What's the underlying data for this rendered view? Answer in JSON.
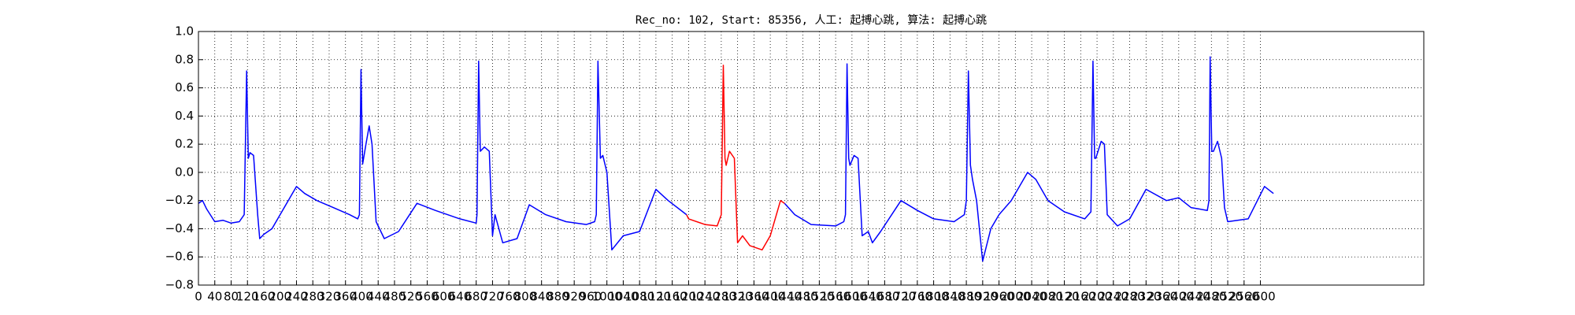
{
  "chart_data": {
    "type": "line",
    "title": "Rec_no: 102, Start: 85356, 人工: 起搏心跳, 算法: 起搏心跳",
    "xlim": [
      0,
      3000
    ],
    "xticks": [
      0,
      40,
      80,
      120,
      160,
      200,
      240,
      280,
      320,
      360,
      400,
      440,
      480,
      520,
      560,
      600,
      640,
      680,
      720,
      760,
      800,
      840,
      880,
      920,
      960,
      1000,
      1040,
      1080,
      1120,
      1160,
      1200,
      1240,
      1280,
      1320,
      1360,
      1400,
      1440,
      1480,
      1520,
      1560,
      1600,
      1640,
      1680,
      1720,
      1760,
      1800,
      1840,
      1880,
      1920,
      1960,
      2000,
      2040,
      2080,
      2120,
      2160,
      2200,
      2240,
      2280,
      2320,
      2360,
      2400,
      2440,
      2480,
      2520,
      2560,
      2600
    ],
    "ylim": [
      -0.8,
      1.0
    ],
    "yticks": [
      {
        "value": -0.8,
        "label": "−0.8"
      },
      {
        "value": -0.6,
        "label": "−0.6"
      },
      {
        "value": -0.4,
        "label": "−0.4"
      },
      {
        "value": -0.2,
        "label": "−0.2"
      },
      {
        "value": 0.0,
        "label": "0.0"
      },
      {
        "value": 0.2,
        "label": "0.2"
      },
      {
        "value": 0.4,
        "label": "0.4"
      },
      {
        "value": 0.6,
        "label": "0.6"
      },
      {
        "value": 0.8,
        "label": "0.8"
      },
      {
        "value": 1.0,
        "label": "1.0"
      }
    ],
    "grid": true,
    "series": [
      {
        "color": "#0000ff",
        "x": [
          0,
          10,
          20,
          40,
          60,
          80,
          100,
          112,
          118,
          122,
          126,
          135,
          145,
          150,
          160,
          180,
          210,
          240,
          260,
          290,
          330,
          370,
          390,
          394,
          398,
          402,
          410,
          418,
          425,
          435,
          455,
          490,
          535,
          580,
          640,
          680,
          682,
          686,
          690,
          700,
          712,
          720,
          726,
          745,
          780,
          810,
          850,
          900,
          950,
          970,
          974,
          978,
          984,
          990,
          1000,
          1012,
          1040,
          1080,
          1120,
          1150,
          1195,
          1300,
          1435,
          1460,
          1500,
          1560,
          1580,
          1584,
          1588,
          1592,
          1595,
          1605,
          1615,
          1625,
          1640,
          1650,
          1670,
          1720,
          1760,
          1800,
          1850,
          1875,
          1880,
          1885,
          1890,
          1895,
          1905,
          1920,
          1940,
          1960,
          1990,
          2030,
          2050,
          2080,
          2120,
          2170,
          2185,
          2190,
          2194,
          2197,
          2210,
          2218,
          2225,
          2250,
          2280,
          2320,
          2370,
          2400,
          2430,
          2470,
          2474,
          2477,
          2481,
          2485,
          2495,
          2505,
          2512,
          2520,
          2570,
          2610,
          2632
        ],
        "values": [
          -0.22,
          -0.2,
          -0.26,
          -0.35,
          -0.34,
          -0.36,
          -0.35,
          -0.3,
          0.72,
          0.1,
          0.14,
          0.12,
          -0.3,
          -0.47,
          -0.44,
          -0.4,
          -0.25,
          -0.1,
          -0.15,
          -0.2,
          -0.25,
          -0.3,
          -0.33,
          -0.3,
          0.73,
          0.06,
          0.2,
          0.33,
          0.2,
          -0.35,
          -0.47,
          -0.42,
          -0.22,
          -0.27,
          -0.33,
          -0.36,
          -0.3,
          0.79,
          0.15,
          0.18,
          0.15,
          -0.45,
          -0.3,
          -0.5,
          -0.47,
          -0.23,
          -0.3,
          -0.35,
          -0.37,
          -0.35,
          -0.3,
          0.79,
          0.1,
          0.12,
          0.0,
          -0.55,
          -0.45,
          -0.42,
          -0.12,
          -0.2,
          -0.3,
          null,
          -0.22,
          -0.3,
          -0.37,
          -0.38,
          -0.35,
          -0.3,
          0.77,
          0.1,
          0.05,
          0.12,
          0.1,
          -0.45,
          -0.42,
          -0.5,
          -0.42,
          -0.2,
          -0.27,
          -0.33,
          -0.35,
          -0.3,
          -0.2,
          0.72,
          0.05,
          -0.05,
          -0.2,
          -0.63,
          -0.4,
          -0.3,
          -0.2,
          0.0,
          -0.05,
          -0.2,
          -0.28,
          -0.33,
          -0.28,
          0.79,
          0.1,
          0.1,
          0.22,
          0.2,
          -0.3,
          -0.38,
          -0.33,
          -0.12,
          -0.2,
          -0.18,
          -0.25,
          -0.27,
          -0.2,
          0.82,
          0.15,
          0.15,
          0.22,
          0.1,
          -0.25,
          -0.35,
          -0.33,
          -0.1,
          -0.15
        ]
      },
      {
        "color": "#ff0000",
        "x": [
          1195,
          1200,
          1240,
          1270,
          1280,
          1285,
          1289,
          1292,
          1300,
          1312,
          1320,
          1332,
          1350,
          1380,
          1400,
          1425,
          1435
        ],
        "values": [
          -0.3,
          -0.33,
          -0.37,
          -0.38,
          -0.3,
          0.76,
          0.1,
          0.05,
          0.15,
          0.1,
          -0.5,
          -0.45,
          -0.52,
          -0.55,
          -0.45,
          -0.2,
          -0.22
        ]
      }
    ]
  }
}
